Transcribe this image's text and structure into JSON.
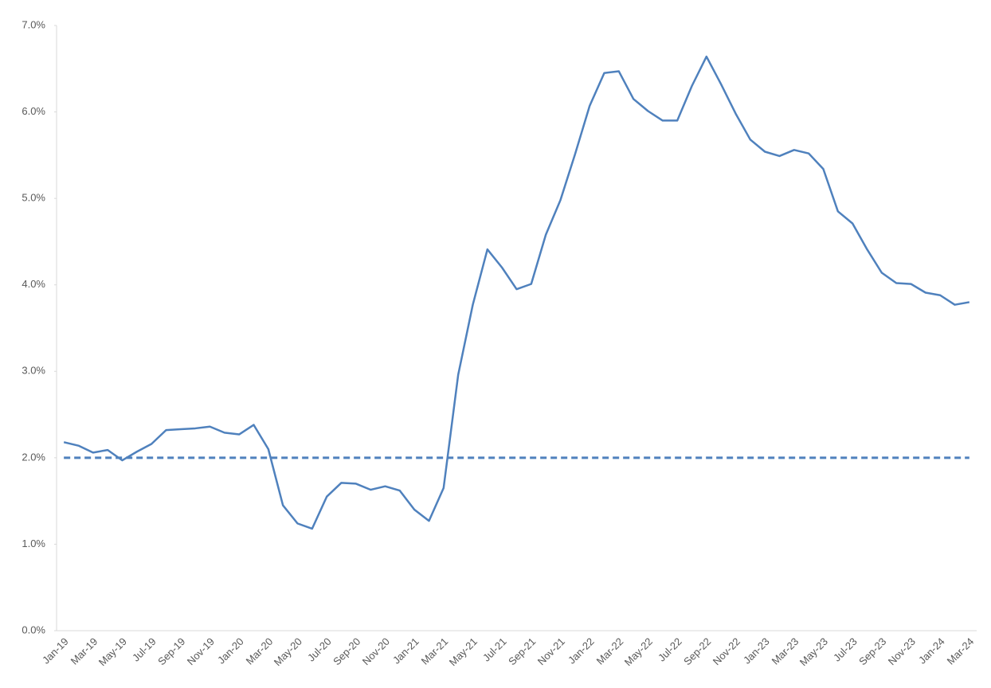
{
  "chart_data": {
    "type": "line",
    "categories": [
      "Jan-19",
      null,
      "Mar-19",
      null,
      "May-19",
      null,
      "Jul-19",
      null,
      "Sep-19",
      null,
      "Nov-19",
      null,
      "Jan-20",
      null,
      "Mar-20",
      null,
      "May-20",
      null,
      "Jul-20",
      null,
      "Sep-20",
      null,
      "Nov-20",
      null,
      "Jan-21",
      null,
      "Mar-21",
      null,
      "May-21",
      null,
      "Jul-21",
      null,
      "Sep-21",
      null,
      "Nov-21",
      null,
      "Jan-22",
      null,
      "Mar-22",
      null,
      "May-22",
      null,
      "Jul-22",
      null,
      "Sep-22",
      null,
      "Nov-22",
      null,
      "Jan-23",
      null,
      "Mar-23",
      null,
      "May-23",
      null,
      "Jul-23",
      null,
      "Sep-23",
      null,
      "Nov-23",
      null,
      "Jan-24",
      null,
      "Mar-24"
    ],
    "series": [
      {
        "color": "#4f81bd",
        "dash": false,
        "values": [
          2.18,
          2.14,
          2.06,
          2.09,
          1.97,
          2.07,
          2.16,
          2.32,
          2.33,
          2.34,
          2.36,
          2.29,
          2.27,
          2.38,
          2.1,
          1.45,
          1.24,
          1.18,
          1.55,
          1.71,
          1.7,
          1.63,
          1.67,
          1.62,
          1.4,
          1.27,
          1.65,
          2.96,
          3.77,
          4.41,
          4.2,
          3.95,
          4.01,
          4.58,
          4.98,
          5.51,
          6.07,
          6.45,
          6.47,
          6.15,
          6.01,
          5.9,
          5.9,
          6.3,
          6.64,
          6.32,
          5.98,
          5.68,
          5.54,
          5.49,
          5.56,
          5.52,
          5.34,
          4.85,
          4.71,
          4.41,
          4.14,
          4.02,
          4.01,
          3.91,
          3.88,
          3.77,
          3.8
        ]
      },
      {
        "color": "#4f81bd",
        "dash": true,
        "values": [
          2,
          2,
          2,
          2,
          2,
          2,
          2,
          2,
          2,
          2,
          2,
          2,
          2,
          2,
          2,
          2,
          2,
          2,
          2,
          2,
          2,
          2,
          2,
          2,
          2,
          2,
          2,
          2,
          2,
          2,
          2,
          2,
          2,
          2,
          2,
          2,
          2,
          2,
          2,
          2,
          2,
          2,
          2,
          2,
          2,
          2,
          2,
          2,
          2,
          2,
          2,
          2,
          2,
          2,
          2,
          2,
          2,
          2,
          2,
          2,
          2,
          2,
          2
        ]
      }
    ],
    "ylim": [
      0,
      7
    ],
    "yticks": [
      {
        "value": 0,
        "label": "0.0%"
      },
      {
        "value": 1,
        "label": "1.0%"
      },
      {
        "value": 2,
        "label": "2.0%"
      },
      {
        "value": 3,
        "label": "3.0%"
      },
      {
        "value": 4,
        "label": "4.0%"
      },
      {
        "value": 5,
        "label": "5.0%"
      },
      {
        "value": 6,
        "label": "6.0%"
      },
      {
        "value": 7,
        "label": "7.0%"
      }
    ],
    "grid": false
  }
}
